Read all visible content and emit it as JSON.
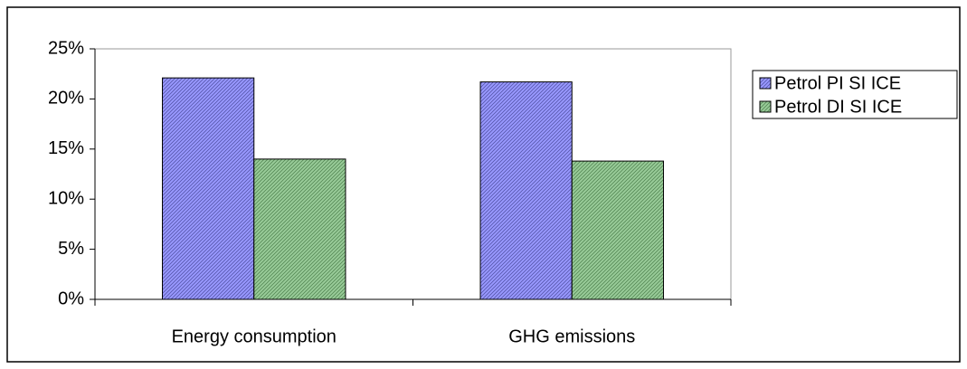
{
  "chart_data": {
    "type": "bar",
    "categories": [
      "Energy consumption",
      "GHG emissions"
    ],
    "series": [
      {
        "name": "Petrol PI SI ICE",
        "color": "#9999ff",
        "values": [
          22.1,
          21.7
        ]
      },
      {
        "name": "Petrol DI SI ICE",
        "color": "#99cc99",
        "values": [
          14.0,
          13.8
        ]
      }
    ],
    "ylim": [
      0,
      25
    ],
    "yticks": [
      {
        "value": 0,
        "label": "0%"
      },
      {
        "value": 5,
        "label": "5%"
      },
      {
        "value": 10,
        "label": "10%"
      },
      {
        "value": 15,
        "label": "15%"
      },
      {
        "value": 20,
        "label": "20%"
      },
      {
        "value": 25,
        "label": "25%"
      }
    ],
    "legend": "right"
  }
}
